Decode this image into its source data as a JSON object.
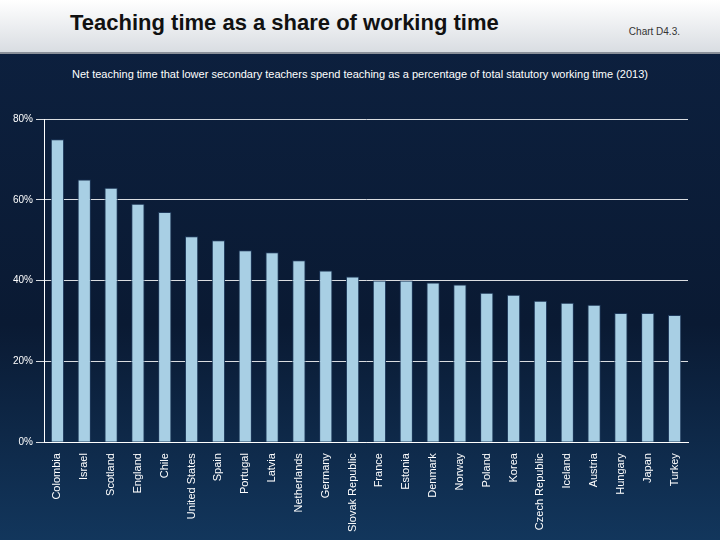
{
  "chart_data": {
    "type": "bar",
    "title": "Teaching time as a share of working time",
    "subtitle": "Net teaching time that lower secondary teachers spend teaching as a percentage of total statutory working time (2013)",
    "annotations": [
      "Chart D4.3."
    ],
    "categories": [
      "Colombia",
      "Israel",
      "Scotland",
      "England",
      "Chile",
      "United States",
      "Spain",
      "Portugal",
      "Latvia",
      "Netherlands",
      "Germany",
      "Slovak Republic",
      "France",
      "Estonia",
      "Denmark",
      "Norway",
      "Poland",
      "Korea",
      "Czech Republic",
      "Iceland",
      "Austria",
      "Hungary",
      "Japan",
      "Turkey"
    ],
    "values": [
      75,
      65,
      63,
      59,
      57,
      51,
      50,
      47.5,
      47,
      45,
      42.5,
      41,
      40,
      40,
      39.5,
      39,
      37,
      36.5,
      35,
      34.5,
      34,
      32,
      32,
      31.5
    ],
    "color": "#a8cfe4",
    "ylim": [
      0,
      80
    ],
    "yticks": [
      {
        "value": 0,
        "label": "0%"
      },
      {
        "value": 20,
        "label": "20%"
      },
      {
        "value": 40,
        "label": "40%"
      },
      {
        "value": 60,
        "label": "60%"
      },
      {
        "value": 80,
        "label": "80%"
      }
    ],
    "grid": true
  }
}
